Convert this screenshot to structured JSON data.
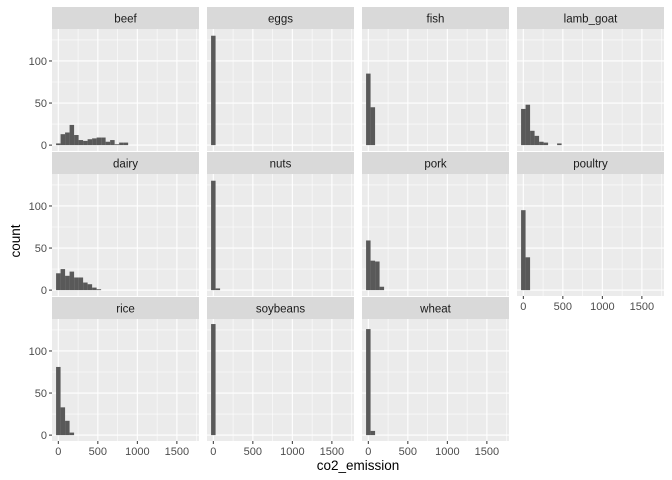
{
  "chart_data": {
    "type": "bar",
    "subtype": "faceted-histogram",
    "xlabel": "co2_emission",
    "ylabel": "count",
    "xlim": [
      -80,
      1780
    ],
    "ylim": [
      -7,
      138
    ],
    "x_ticks": [
      0,
      500,
      1000,
      1500
    ],
    "x_tick_labels": [
      "0",
      "500",
      "1000",
      "1500"
    ],
    "y_ticks": [
      0,
      50,
      100
    ],
    "y_tick_labels": [
      "0",
      "50",
      "100"
    ],
    "bin_width": 57,
    "grid": true,
    "colors": {
      "bar": "#595959",
      "panel": "#ebebeb",
      "strip": "#d9d9d9",
      "grid": "#ffffff"
    },
    "facets": [
      {
        "name": "beef",
        "bins": [
          {
            "x": 0,
            "count": 2
          },
          {
            "x": 57,
            "count": 13
          },
          {
            "x": 114,
            "count": 15
          },
          {
            "x": 171,
            "count": 24
          },
          {
            "x": 228,
            "count": 12
          },
          {
            "x": 285,
            "count": 6
          },
          {
            "x": 342,
            "count": 5
          },
          {
            "x": 399,
            "count": 7
          },
          {
            "x": 456,
            "count": 8
          },
          {
            "x": 513,
            "count": 9
          },
          {
            "x": 570,
            "count": 9
          },
          {
            "x": 627,
            "count": 4
          },
          {
            "x": 684,
            "count": 6
          },
          {
            "x": 741,
            "count": 1
          },
          {
            "x": 798,
            "count": 3
          },
          {
            "x": 855,
            "count": 3
          }
        ]
      },
      {
        "name": "eggs",
        "bins": [
          {
            "x": 0,
            "count": 130
          }
        ]
      },
      {
        "name": "fish",
        "bins": [
          {
            "x": 0,
            "count": 85
          },
          {
            "x": 57,
            "count": 45
          }
        ]
      },
      {
        "name": "lamb_goat",
        "bins": [
          {
            "x": 0,
            "count": 43
          },
          {
            "x": 57,
            "count": 48
          },
          {
            "x": 114,
            "count": 17
          },
          {
            "x": 171,
            "count": 11
          },
          {
            "x": 228,
            "count": 4
          },
          {
            "x": 285,
            "count": 3
          },
          {
            "x": 456,
            "count": 2
          }
        ]
      },
      {
        "name": "dairy",
        "bins": [
          {
            "x": 0,
            "count": 20
          },
          {
            "x": 57,
            "count": 25
          },
          {
            "x": 114,
            "count": 17
          },
          {
            "x": 171,
            "count": 22
          },
          {
            "x": 228,
            "count": 15
          },
          {
            "x": 285,
            "count": 15
          },
          {
            "x": 342,
            "count": 9
          },
          {
            "x": 399,
            "count": 7
          },
          {
            "x": 456,
            "count": 3
          },
          {
            "x": 513,
            "count": 1
          }
        ]
      },
      {
        "name": "nuts",
        "bins": [
          {
            "x": 0,
            "count": 130
          },
          {
            "x": 57,
            "count": 2
          }
        ]
      },
      {
        "name": "pork",
        "bins": [
          {
            "x": 0,
            "count": 59
          },
          {
            "x": 57,
            "count": 35
          },
          {
            "x": 114,
            "count": 34
          },
          {
            "x": 171,
            "count": 4
          }
        ]
      },
      {
        "name": "poultry",
        "bins": [
          {
            "x": 0,
            "count": 95
          },
          {
            "x": 57,
            "count": 39
          }
        ]
      },
      {
        "name": "rice",
        "bins": [
          {
            "x": 0,
            "count": 81
          },
          {
            "x": 57,
            "count": 33
          },
          {
            "x": 114,
            "count": 17
          },
          {
            "x": 171,
            "count": 3
          }
        ]
      },
      {
        "name": "soybeans",
        "bins": [
          {
            "x": 0,
            "count": 132
          }
        ]
      },
      {
        "name": "wheat",
        "bins": [
          {
            "x": 0,
            "count": 126
          },
          {
            "x": 57,
            "count": 5
          }
        ]
      }
    ]
  }
}
